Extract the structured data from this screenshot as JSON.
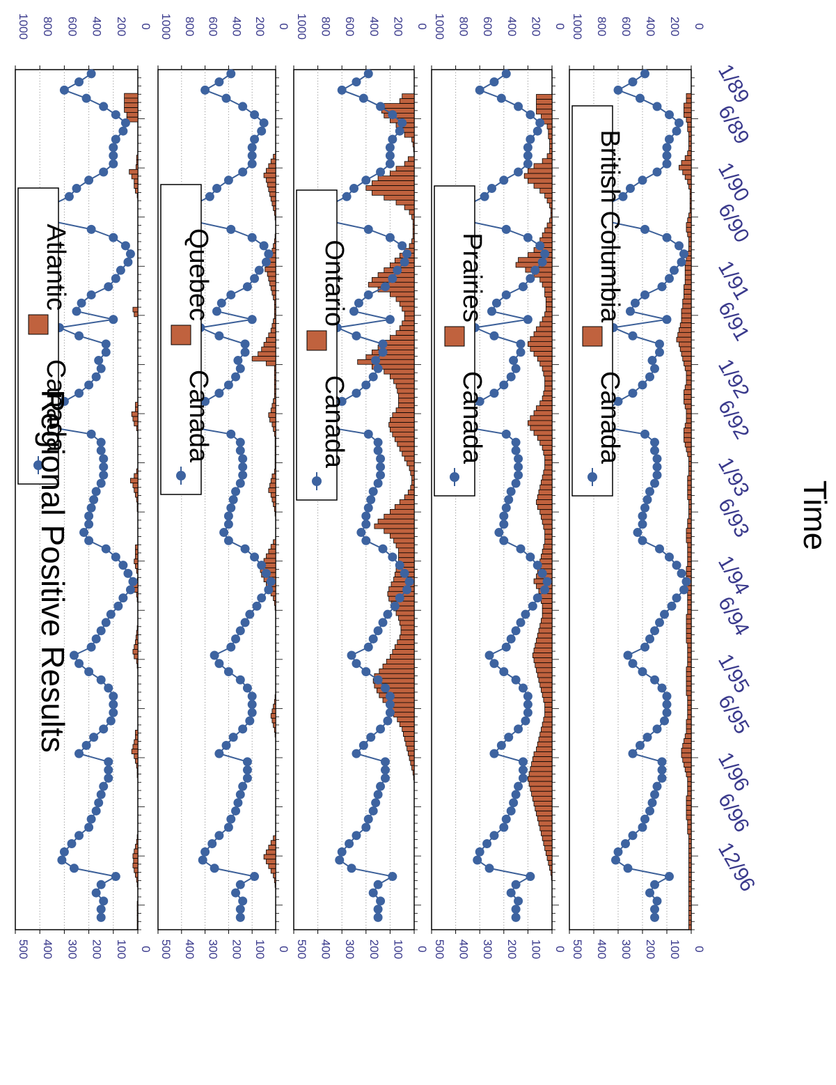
{
  "chart_data": [
    {
      "type": "bar",
      "legend": {
        "line_label": "Canada",
        "bar_label": "Atlantic"
      },
      "left_axis": {
        "ticks": [
          "500",
          "400",
          "300",
          "200",
          "100",
          "0"
        ],
        "ylim": [
          0,
          500
        ]
      },
      "right_axis": {
        "ticks": [
          "1000",
          "800",
          "600",
          "400",
          "200",
          "0"
        ],
        "ylim": [
          0,
          1000
        ]
      },
      "region_values": [
        0,
        0,
        0,
        0,
        0,
        110,
        110,
        110,
        110,
        90,
        90,
        0,
        0,
        0,
        0,
        0,
        0,
        0,
        10,
        10,
        15,
        70,
        50,
        30,
        30,
        20,
        5,
        0,
        0,
        0,
        0,
        0,
        0,
        0,
        0,
        0,
        0,
        0,
        0,
        0,
        0,
        0,
        0,
        0,
        0,
        0,
        0,
        0,
        0,
        0,
        40,
        30,
        0,
        0,
        0,
        0,
        0,
        0,
        0,
        0,
        0,
        0,
        0,
        0,
        0,
        0,
        0,
        0,
        0,
        0,
        20,
        20,
        50,
        40,
        30,
        10,
        0,
        0,
        0,
        0,
        0,
        0,
        0,
        0,
        10,
        30,
        60,
        40,
        30,
        20,
        10,
        5,
        5,
        0,
        0,
        0,
        0,
        0,
        0,
        0,
        20,
        20,
        20,
        30,
        20,
        10,
        0,
        5,
        50,
        30,
        10,
        5,
        0,
        0,
        0,
        0,
        0,
        5,
        10,
        15,
        20,
        30,
        40,
        30,
        10,
        5,
        0,
        0,
        0,
        0,
        0,
        0,
        0,
        0,
        0,
        0,
        0,
        0,
        0,
        20,
        20,
        30,
        40,
        50,
        30,
        20,
        10,
        5,
        5,
        0,
        0,
        0,
        0,
        0,
        0,
        0,
        0,
        0,
        0,
        0,
        0,
        5,
        10,
        20,
        30,
        40,
        35,
        40,
        30,
        20,
        10,
        5,
        0,
        0,
        0,
        5,
        5,
        5,
        5,
        5,
        5
      ]
    },
    {
      "type": "bar",
      "legend": {
        "line_label": "Canada",
        "bar_label": "Quebec"
      },
      "left_axis": {
        "ticks": [
          "500",
          "400",
          "300",
          "200",
          "100",
          "0"
        ],
        "ylim": [
          0,
          500
        ]
      },
      "right_axis": {
        "ticks": [
          "1000",
          "800",
          "600",
          "400",
          "200",
          "0"
        ],
        "ylim": [
          0,
          1000
        ]
      },
      "region_values": [
        0,
        0,
        0,
        0,
        0,
        0,
        0,
        0,
        0,
        0,
        0,
        0,
        0,
        0,
        0,
        0,
        0,
        0,
        20,
        40,
        60,
        80,
        100,
        80,
        70,
        60,
        50,
        40,
        30,
        20,
        10,
        5,
        0,
        0,
        0,
        5,
        10,
        20,
        30,
        40,
        60,
        80,
        90,
        70,
        60,
        50,
        40,
        30,
        20,
        10,
        10,
        10,
        10,
        20,
        30,
        40,
        60,
        80,
        100,
        120,
        150,
        200,
        80,
        10,
        10,
        10,
        10,
        10,
        10,
        10,
        20,
        30,
        40,
        60,
        50,
        30,
        20,
        10,
        5,
        5,
        5,
        5,
        5,
        5,
        5,
        10,
        30,
        40,
        50,
        60,
        40,
        30,
        20,
        10,
        5,
        0,
        0,
        0,
        0,
        0,
        20,
        40,
        60,
        80,
        100,
        120,
        130,
        120,
        100,
        80,
        60,
        40,
        20,
        10,
        5,
        0,
        0,
        0,
        0,
        0,
        0,
        0,
        0,
        0,
        0,
        0,
        0,
        0,
        0,
        0,
        0,
        0,
        0,
        5,
        10,
        20,
        30,
        40,
        30,
        20,
        10,
        5,
        0,
        0,
        0,
        0,
        0,
        0,
        0,
        0,
        0,
        0,
        0,
        0,
        0,
        0,
        0,
        0,
        0,
        0,
        0,
        0,
        0,
        20,
        40,
        60,
        80,
        100,
        80,
        60,
        40,
        20,
        10,
        5,
        0,
        0,
        0,
        0,
        0,
        0,
        0,
        0,
        0
      ]
    },
    {
      "type": "bar",
      "legend": {
        "line_label": "Canada",
        "bar_label": "Ontario"
      },
      "left_axis": {
        "ticks": [
          "500",
          "400",
          "300",
          "200",
          "100",
          "0"
        ],
        "ylim": [
          0,
          500
        ]
      },
      "right_axis": {
        "ticks": [
          "1000",
          "800",
          "600",
          "400",
          "200",
          "0"
        ],
        "ylim": [
          0,
          1000
        ]
      },
      "region_values": [
        0,
        0,
        0,
        0,
        0,
        100,
        120,
        250,
        270,
        250,
        200,
        150,
        100,
        80,
        20,
        10,
        5,
        0,
        50,
        80,
        150,
        200,
        300,
        350,
        400,
        350,
        250,
        150,
        80,
        40,
        20,
        10,
        10,
        10,
        10,
        20,
        40,
        80,
        120,
        160,
        200,
        250,
        300,
        350,
        380,
        300,
        200,
        150,
        120,
        100,
        80,
        80,
        100,
        120,
        150,
        200,
        250,
        300,
        350,
        400,
        470,
        350,
        250,
        200,
        170,
        150,
        140,
        130,
        130,
        130,
        150,
        180,
        200,
        210,
        200,
        180,
        160,
        140,
        120,
        100,
        80,
        60,
        40,
        30,
        20,
        20,
        30,
        50,
        80,
        120,
        160,
        200,
        250,
        300,
        330,
        250,
        200,
        170,
        150,
        130,
        130,
        130,
        140,
        150,
        160,
        170,
        190,
        210,
        220,
        210,
        190,
        170,
        150,
        130,
        120,
        110,
        110,
        120,
        140,
        160,
        180,
        200,
        230,
        260,
        290,
        330,
        340,
        330,
        310,
        290,
        260,
        220,
        200,
        170,
        140,
        120,
        100,
        90,
        80,
        70,
        60,
        50,
        40,
        30,
        20,
        10,
        5,
        0,
        0,
        0,
        0,
        0,
        0,
        0,
        0,
        0,
        0,
        0,
        0,
        0,
        0,
        0,
        0,
        0,
        0,
        0,
        0,
        0,
        0,
        0,
        0,
        0,
        0,
        0,
        0,
        0,
        0,
        0
      ]
    },
    {
      "type": "bar",
      "legend": {
        "line_label": "Canada",
        "bar_label": "Prairies"
      },
      "left_axis": {
        "ticks": [
          "500",
          "400",
          "300",
          "200",
          "100",
          "0"
        ],
        "ylim": [
          0,
          500
        ]
      },
      "right_axis": {
        "ticks": [
          "1000",
          "800",
          "600",
          "400",
          "200",
          "0"
        ],
        "ylim": [
          0,
          1000
        ]
      },
      "region_values": [
        0,
        0,
        0,
        0,
        0,
        130,
        130,
        130,
        130,
        90,
        90,
        40,
        30,
        30,
        20,
        20,
        20,
        40,
        80,
        150,
        200,
        230,
        200,
        150,
        100,
        60,
        40,
        20,
        10,
        10,
        20,
        40,
        60,
        80,
        100,
        120,
        150,
        200,
        280,
        300,
        220,
        150,
        100,
        80,
        60,
        60,
        50,
        50,
        50,
        60,
        80,
        100,
        130,
        150,
        180,
        200,
        180,
        150,
        120,
        100,
        80,
        70,
        60,
        60,
        60,
        70,
        80,
        100,
        130,
        150,
        180,
        200,
        180,
        150,
        120,
        100,
        80,
        70,
        60,
        60,
        60,
        70,
        80,
        90,
        100,
        110,
        120,
        130,
        120,
        100,
        90,
        80,
        70,
        60,
        60,
        60,
        70,
        80,
        90,
        100,
        110,
        120,
        130,
        150,
        130,
        110,
        100,
        90,
        80,
        80,
        80,
        90,
        100,
        110,
        120,
        130,
        140,
        150,
        160,
        150,
        140,
        130,
        120,
        110,
        100,
        90,
        80,
        70,
        60,
        60,
        60,
        70,
        80,
        90,
        100,
        110,
        120,
        130,
        150,
        160,
        170,
        180,
        190,
        200,
        190,
        180,
        170,
        160,
        150,
        140,
        130,
        120,
        110,
        100,
        90,
        80,
        70,
        60,
        50,
        40,
        30,
        20,
        10,
        5,
        0,
        0,
        0,
        0,
        0,
        0,
        0,
        0,
        0,
        0
      ]
    },
    {
      "type": "bar",
      "legend": {
        "line_label": "Canada",
        "bar_label": "British Columbia"
      },
      "left_axis": {
        "ticks": [
          "500",
          "400",
          "300",
          "200",
          "100",
          "0"
        ],
        "ylim": [
          0,
          500
        ]
      },
      "right_axis": {
        "ticks": [
          "1000",
          "800",
          "600",
          "400",
          "200",
          "0"
        ],
        "ylim": [
          0,
          1000
        ]
      },
      "region_values": [
        0,
        0,
        0,
        0,
        0,
        40,
        40,
        60,
        60,
        60,
        40,
        30,
        30,
        20,
        20,
        20,
        20,
        30,
        50,
        80,
        100,
        70,
        50,
        30,
        20,
        10,
        10,
        10,
        10,
        10,
        20,
        30,
        40,
        40,
        30,
        20,
        20,
        20,
        30,
        40,
        50,
        50,
        50,
        50,
        50,
        60,
        60,
        60,
        70,
        70,
        80,
        80,
        80,
        90,
        100,
        110,
        120,
        100,
        90,
        80,
        70,
        60,
        50,
        40,
        40,
        40,
        50,
        60,
        60,
        60,
        50,
        40,
        40,
        40,
        50,
        60,
        60,
        60,
        50,
        40,
        30,
        20,
        20,
        20,
        20,
        30,
        30,
        30,
        30,
        30,
        20,
        20,
        20,
        20,
        30,
        30,
        40,
        40,
        40,
        30,
        30,
        30,
        30,
        30,
        40,
        40,
        40,
        40,
        40,
        30,
        30,
        30,
        30,
        30,
        40,
        40,
        40,
        40,
        40,
        40,
        30,
        30,
        30,
        30,
        30,
        40,
        40,
        40,
        40,
        40,
        40,
        30,
        30,
        30,
        30,
        30,
        40,
        40,
        40,
        50,
        60,
        70,
        80,
        80,
        70,
        60,
        50,
        40,
        30,
        30,
        30,
        30,
        40,
        40,
        40,
        40,
        40,
        30,
        30,
        30,
        20,
        20,
        20,
        20,
        20,
        20,
        20,
        20,
        20,
        20,
        20,
        20,
        20,
        20,
        20,
        20,
        20,
        20,
        20,
        20
      ]
    }
  ],
  "canada_series": {
    "name": "Canada",
    "points": [
      [
        1,
        190
      ],
      [
        2,
        240
      ],
      [
        3,
        300
      ],
      [
        4,
        210
      ],
      [
        5,
        140
      ],
      [
        6,
        90
      ],
      [
        7,
        50
      ],
      [
        8,
        60
      ],
      [
        9,
        90
      ],
      [
        10,
        100
      ],
      [
        11,
        100
      ],
      [
        12,
        100
      ],
      [
        13,
        140
      ],
      [
        14,
        200
      ],
      [
        15,
        250
      ],
      [
        16,
        280
      ],
      [
        17,
        350
      ],
      [
        18,
        410
      ],
      [
        19,
        350
      ],
      [
        20,
        190
      ],
      [
        21,
        100
      ],
      [
        22,
        50
      ],
      [
        23,
        30
      ],
      [
        24,
        40
      ],
      [
        25,
        70
      ],
      [
        26,
        90
      ],
      [
        27,
        120
      ],
      [
        28,
        190
      ],
      [
        29,
        230
      ],
      [
        30,
        250
      ],
      [
        31,
        100
      ],
      [
        32,
        320
      ],
      [
        33,
        240
      ],
      [
        34,
        130
      ],
      [
        35,
        130
      ],
      [
        36,
        160
      ],
      [
        37,
        150
      ],
      [
        38,
        170
      ],
      [
        39,
        200
      ],
      [
        40,
        240
      ],
      [
        41,
        300
      ],
      [
        42,
        340
      ],
      [
        43,
        370
      ],
      [
        44,
        390
      ],
      [
        45,
        190
      ],
      [
        46,
        150
      ],
      [
        47,
        150
      ],
      [
        48,
        140
      ],
      [
        49,
        140
      ],
      [
        50,
        140
      ],
      [
        51,
        150
      ],
      [
        52,
        170
      ],
      [
        53,
        180
      ],
      [
        54,
        190
      ],
      [
        55,
        200
      ],
      [
        56,
        200
      ],
      [
        57,
        220
      ],
      [
        58,
        200
      ],
      [
        59,
        130
      ],
      [
        60,
        90
      ],
      [
        61,
        60
      ],
      [
        62,
        40
      ],
      [
        63,
        20
      ],
      [
        64,
        30
      ],
      [
        65,
        60
      ],
      [
        66,
        80
      ],
      [
        67,
        110
      ],
      [
        68,
        130
      ],
      [
        69,
        150
      ],
      [
        70,
        170
      ],
      [
        71,
        190
      ],
      [
        72,
        260
      ],
      [
        73,
        240
      ],
      [
        74,
        200
      ],
      [
        75,
        150
      ],
      [
        76,
        120
      ],
      [
        77,
        100
      ],
      [
        78,
        100
      ],
      [
        79,
        100
      ],
      [
        80,
        110
      ],
      [
        81,
        140
      ],
      [
        82,
        180
      ],
      [
        83,
        210
      ],
      [
        84,
        240
      ],
      [
        85,
        120
      ],
      [
        86,
        120
      ],
      [
        87,
        120
      ],
      [
        88,
        140
      ],
      [
        89,
        150
      ],
      [
        90,
        160
      ],
      [
        91,
        170
      ],
      [
        92,
        190
      ],
      [
        93,
        200
      ],
      [
        94,
        240
      ],
      [
        95,
        270
      ],
      [
        96,
        300
      ],
      [
        97,
        310
      ],
      [
        98,
        260
      ],
      [
        99,
        90
      ],
      [
        100,
        150
      ],
      [
        101,
        170
      ],
      [
        102,
        140
      ],
      [
        103,
        150
      ],
      [
        104,
        150
      ]
    ],
    "x_count": 105
  },
  "x_ticks": [
    "1/89",
    "6/89",
    "1/90",
    "6/90",
    "1/91",
    "6/91",
    "1/92",
    "6/92",
    "1/93",
    "6/93",
    "1/94",
    "6/94",
    "1/95",
    "6/95",
    "1/96",
    "6/96",
    "12/96"
  ],
  "x_tick_positions": [
    1,
    6,
    13,
    18,
    25,
    30,
    37,
    42,
    49,
    54,
    61,
    66,
    73,
    78,
    85,
    90,
    96
  ],
  "xlabel": "Time",
  "ylabel": "Regional Positive Results",
  "colors": {
    "bar_fill": "#c0623e",
    "line": "#3b5f98",
    "marker": "#3d63a0",
    "ticks": "#3a3a8c"
  }
}
